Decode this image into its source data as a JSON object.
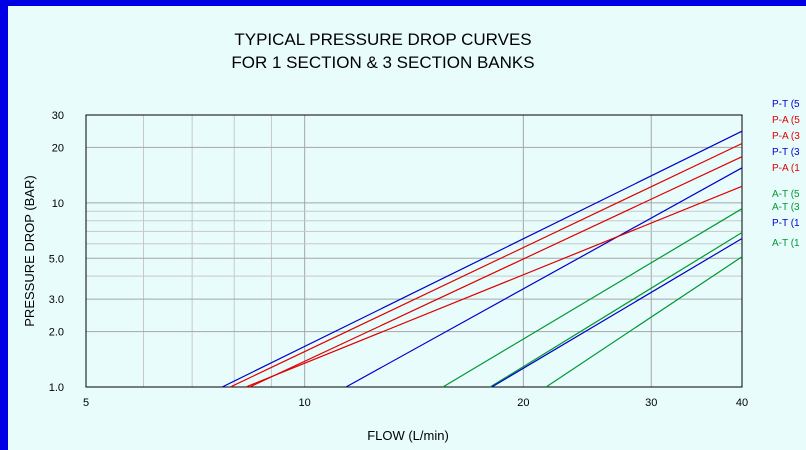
{
  "chart_data": {
    "type": "line",
    "title_lines": [
      "TYPICAL PRESSURE DROP CURVES",
      "FOR 1 SECTION & 3 SECTION BANKS"
    ],
    "xlabel": "FLOW (L/min)",
    "ylabel": "PRESSURE DROP (BAR)",
    "x_scale": "log",
    "y_scale": "log",
    "xlim": [
      5,
      40
    ],
    "ylim": [
      1.0,
      30
    ],
    "x_ticks": [
      {
        "value": 5,
        "label": "5"
      },
      {
        "value": 10,
        "label": "10"
      },
      {
        "value": 20,
        "label": "20"
      },
      {
        "value": 30,
        "label": "30"
      },
      {
        "value": 40,
        "label": "40"
      }
    ],
    "y_ticks": [
      {
        "value": 1,
        "label": "1.0"
      },
      {
        "value": 2,
        "label": "2.0"
      },
      {
        "value": 3,
        "label": "3.0"
      },
      {
        "value": 5,
        "label": "5.0"
      },
      {
        "value": 10,
        "label": "10"
      },
      {
        "value": 20,
        "label": "20"
      },
      {
        "value": 30,
        "label": "30"
      }
    ],
    "x_grid": [
      5,
      6,
      7,
      8,
      9,
      10,
      20,
      30,
      40
    ],
    "y_grid": [
      1,
      2,
      3,
      4,
      5,
      6,
      7,
      8,
      9,
      10,
      20,
      30
    ],
    "grid": true,
    "legend_position": "right",
    "series": [
      {
        "name": "P-T (5",
        "color": "#0000cc",
        "points": [
          [
            7.7,
            1.0
          ],
          [
            40,
            24.5
          ]
        ]
      },
      {
        "name": "P-A (5",
        "color": "#e00000",
        "points": [
          [
            7.9,
            1.0
          ],
          [
            40,
            21.0
          ]
        ]
      },
      {
        "name": "P-A (3",
        "color": "#e00000",
        "points": [
          [
            8.4,
            1.0
          ],
          [
            40,
            17.8
          ]
        ]
      },
      {
        "name": "P-T (3",
        "color": "#0000cc",
        "points": [
          [
            11.4,
            1.0
          ],
          [
            40,
            15.5
          ]
        ]
      },
      {
        "name": "P-A (1",
        "color": "#e00000",
        "points": [
          [
            8.3,
            1.0
          ],
          [
            40,
            12.3
          ]
        ]
      },
      {
        "name": "A-T (5",
        "color": "#009933",
        "points": [
          [
            15.5,
            1.0
          ],
          [
            40,
            9.3
          ]
        ]
      },
      {
        "name": "A-T (3",
        "color": "#009933",
        "points": [
          [
            18.0,
            1.0
          ],
          [
            40,
            6.9
          ]
        ]
      },
      {
        "name": "P-T (1",
        "color": "#0000cc",
        "points": [
          [
            18.1,
            1.0
          ],
          [
            40,
            6.4
          ]
        ]
      },
      {
        "name": "A-T (1",
        "color": "#009933",
        "points": [
          [
            21.5,
            1.0
          ],
          [
            40,
            5.1
          ]
        ]
      }
    ]
  }
}
